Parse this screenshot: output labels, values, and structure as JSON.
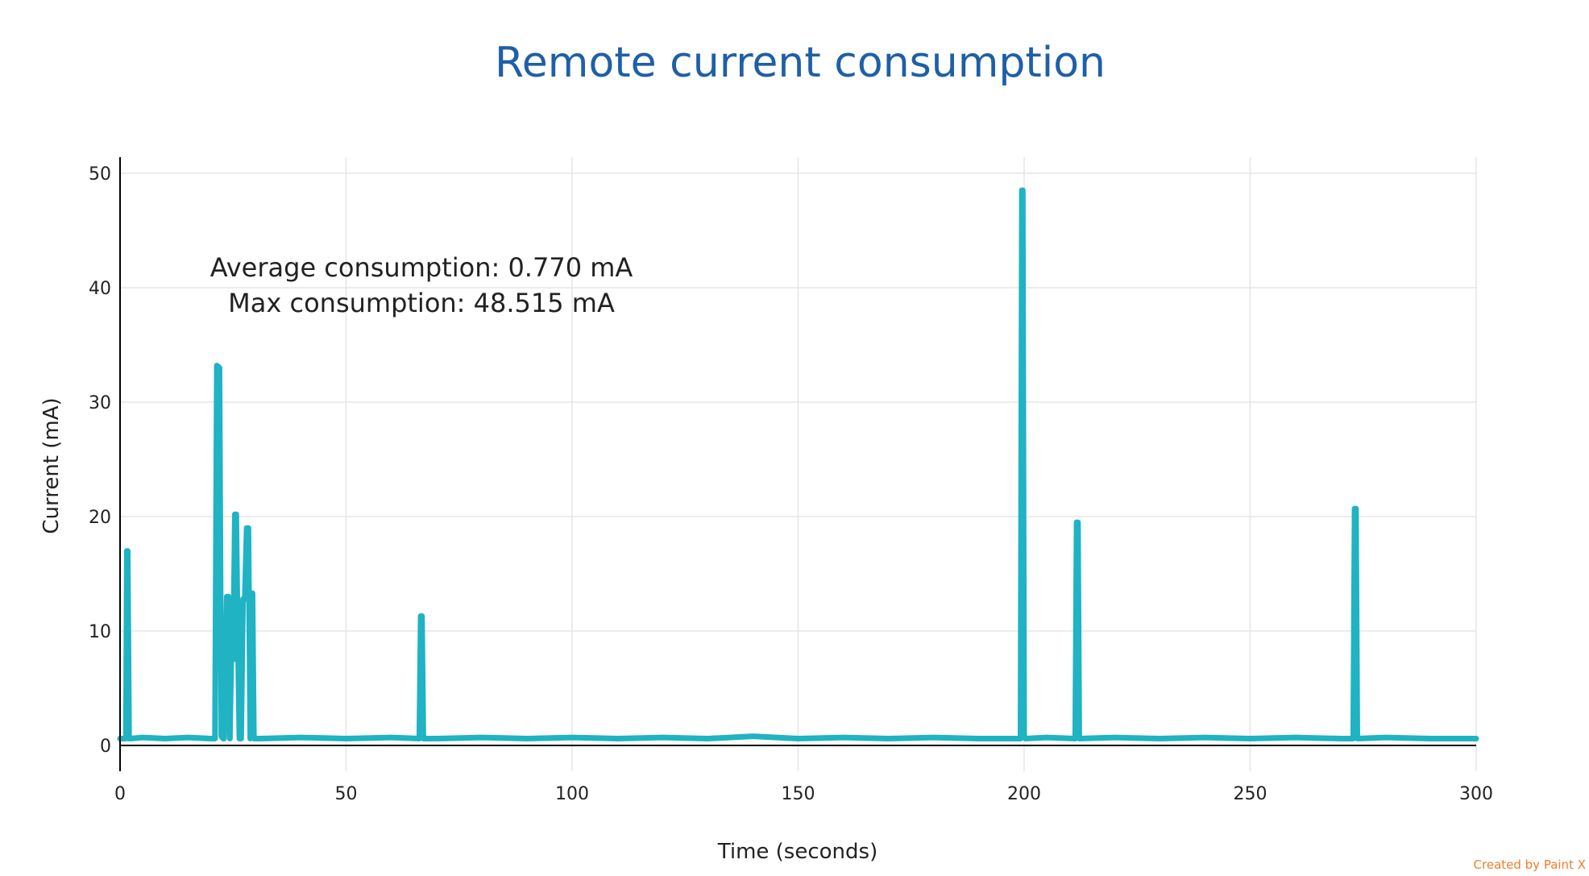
{
  "chart_data": {
    "type": "line",
    "title": "Remote current consumption",
    "xlabel": "Time (seconds)",
    "ylabel": "Current (mA)",
    "xlim": [
      0,
      300
    ],
    "ylim": [
      -2,
      51
    ],
    "x_ticks": [
      0,
      50,
      100,
      150,
      200,
      250,
      300
    ],
    "y_ticks": [
      0,
      10,
      20,
      30,
      40,
      50
    ],
    "grid": true,
    "legend": "none",
    "annotations": [
      "Average consumption: 0.770 mA",
      "Max consumption: 48.515 mA"
    ],
    "series_color": "#1fb3c3",
    "series": [
      {
        "x": [
          0,
          1.3,
          1.5,
          1.7,
          2.0,
          2.3,
          5,
          10,
          15,
          20,
          21.0,
          21.4,
          22.0,
          22.4,
          22.8,
          23.0,
          23.6,
          24.0,
          24.3,
          24.6,
          25.0,
          25.4,
          25.7,
          26.0,
          26.4,
          26.8,
          27.2,
          27.6,
          28.0,
          28.4,
          28.8,
          29.0,
          29.3,
          29.6,
          30.0,
          30.4,
          31,
          40,
          50,
          60,
          66.2,
          66.5,
          66.8,
          67.1,
          70,
          80,
          90,
          100,
          110,
          120,
          130,
          140,
          150,
          160,
          170,
          180,
          190,
          199.2,
          199.5,
          199.7,
          200.0,
          200.3,
          205,
          211.3,
          211.6,
          211.9,
          212.2,
          220,
          230,
          240,
          250,
          260,
          270,
          272.8,
          273.1,
          273.4,
          273.7,
          280,
          290,
          300
        ],
        "y": [
          0.6,
          0.6,
          17.0,
          17.0,
          0.6,
          0.6,
          0.7,
          0.6,
          0.7,
          0.6,
          0.6,
          33.2,
          33.0,
          0.8,
          0.6,
          0.6,
          13.0,
          13.0,
          0.6,
          7.5,
          7.5,
          20.2,
          20.2,
          10.5,
          0.6,
          0.6,
          12.8,
          12.8,
          19.0,
          19.0,
          0.6,
          13.3,
          13.3,
          0.6,
          0.6,
          0.6,
          0.6,
          0.7,
          0.6,
          0.7,
          0.6,
          11.3,
          11.3,
          0.6,
          0.6,
          0.7,
          0.6,
          0.7,
          0.6,
          0.7,
          0.6,
          0.8,
          0.6,
          0.7,
          0.6,
          0.7,
          0.6,
          0.6,
          48.515,
          48.515,
          0.7,
          0.6,
          0.7,
          0.6,
          19.5,
          19.5,
          0.6,
          0.7,
          0.6,
          0.7,
          0.6,
          0.7,
          0.6,
          0.6,
          20.7,
          20.7,
          0.6,
          0.7,
          0.6,
          0.6
        ]
      }
    ]
  },
  "credit": "Created by Paint X"
}
